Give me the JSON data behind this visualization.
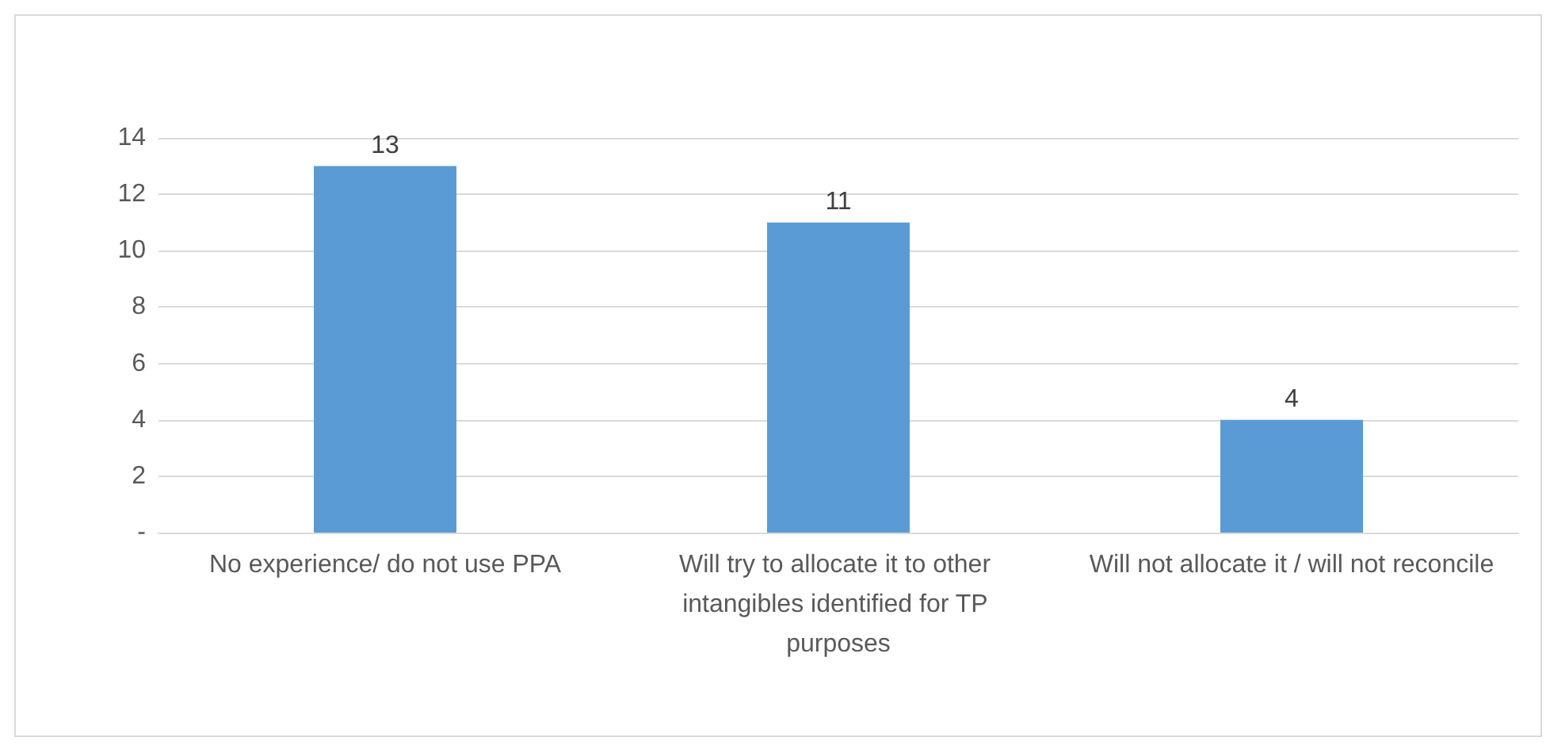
{
  "chart_data": {
    "type": "bar",
    "categories": [
      "No experience/ do not use PPA",
      "Will try to allocate it to other intangibles identified for TP purposes",
      "Will not allocate it / will not reconcile"
    ],
    "values": [
      13,
      11,
      4
    ],
    "color": "#5b9bd5",
    "ylim": [
      0,
      14
    ],
    "yticks": [
      {
        "value": 0,
        "label": "-"
      },
      2,
      4,
      6,
      8,
      10,
      12,
      14
    ],
    "grid": "y",
    "data_labels": true
  }
}
